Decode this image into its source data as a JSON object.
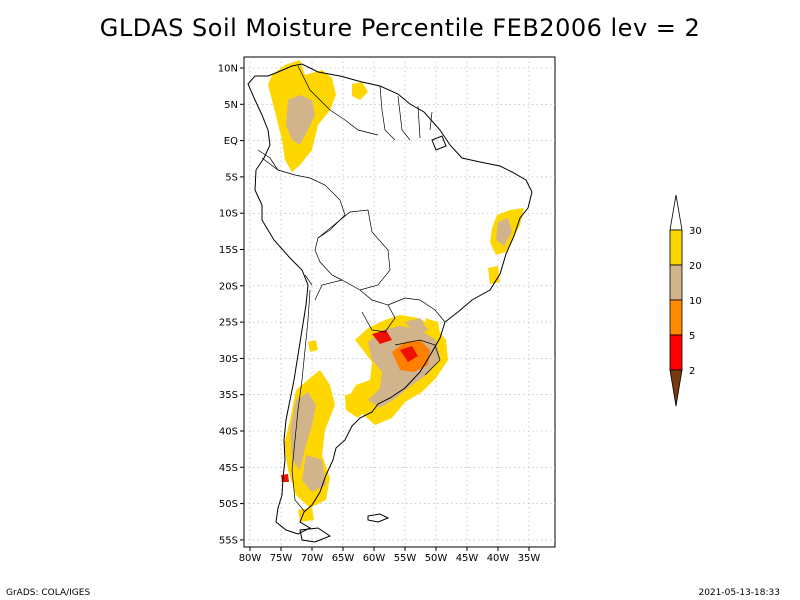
{
  "title": "GLDAS Soil Moisture Percentile FEB2006 lev = 2",
  "footer": {
    "left": "GrADS: COLA/IGES",
    "right": "2021-05-13-18:33"
  },
  "axes": {
    "lat_labels": [
      "10N",
      "5N",
      "EQ",
      "5S",
      "10S",
      "15S",
      "20S",
      "25S",
      "30S",
      "35S",
      "40S",
      "45S",
      "50S",
      "55S"
    ],
    "lon_labels": [
      "80W",
      "75W",
      "70W",
      "65W",
      "60W",
      "55W",
      "50W",
      "45W",
      "40W",
      "35W"
    ]
  },
  "colorbar": {
    "labels": [
      "2",
      "5",
      "10",
      "20",
      "30"
    ],
    "colors": {
      "below_2": "#7a3a10",
      "c2_5": "#ff0000",
      "c5_10": "#ff8c00",
      "c10_20": "#d2b48c",
      "c20_30": "#ffd700",
      "above_30": "#ffffff"
    }
  },
  "colors": {
    "dry_red": "#ee1100",
    "dry_orange": "#ff7f00",
    "tan": "#d2b48c",
    "yellow": "#ffd700"
  }
}
